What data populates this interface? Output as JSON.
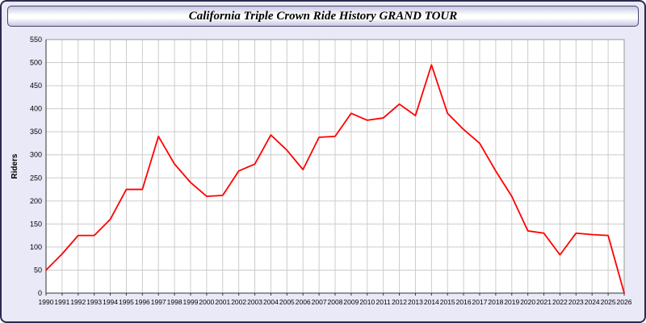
{
  "header": {
    "title": "California Triple Crown Ride History GRAND TOUR"
  },
  "chart_data": {
    "type": "line",
    "title": "California Triple Crown Ride History GRAND TOUR",
    "xlabel": "",
    "ylabel": "Riders",
    "ylim": [
      0,
      550
    ],
    "ytick_step": 50,
    "grid": true,
    "legend_position": "none",
    "line_color": "#ff0000",
    "grid_color": "#cccccc",
    "plot_bg": "#ffffff",
    "categories": [
      "1990",
      "1991",
      "1992",
      "1993",
      "1994",
      "1995",
      "1996",
      "1997",
      "1998",
      "1999",
      "2000",
      "2001",
      "2002",
      "2003",
      "2004",
      "2005",
      "2006",
      "2007",
      "2008",
      "2009",
      "2010",
      "2011",
      "2012",
      "2013",
      "2014",
      "2015",
      "2016",
      "2017",
      "2018",
      "2019",
      "2020",
      "2021",
      "2022",
      "2023",
      "2024",
      "2025",
      "2026"
    ],
    "values": [
      50,
      85,
      125,
      125,
      160,
      225,
      225,
      340,
      280,
      240,
      210,
      212,
      265,
      280,
      343,
      310,
      268,
      338,
      340,
      390,
      375,
      380,
      410,
      385,
      495,
      390,
      355,
      325,
      265,
      210,
      135,
      130,
      83,
      130,
      127,
      125,
      0
    ]
  }
}
